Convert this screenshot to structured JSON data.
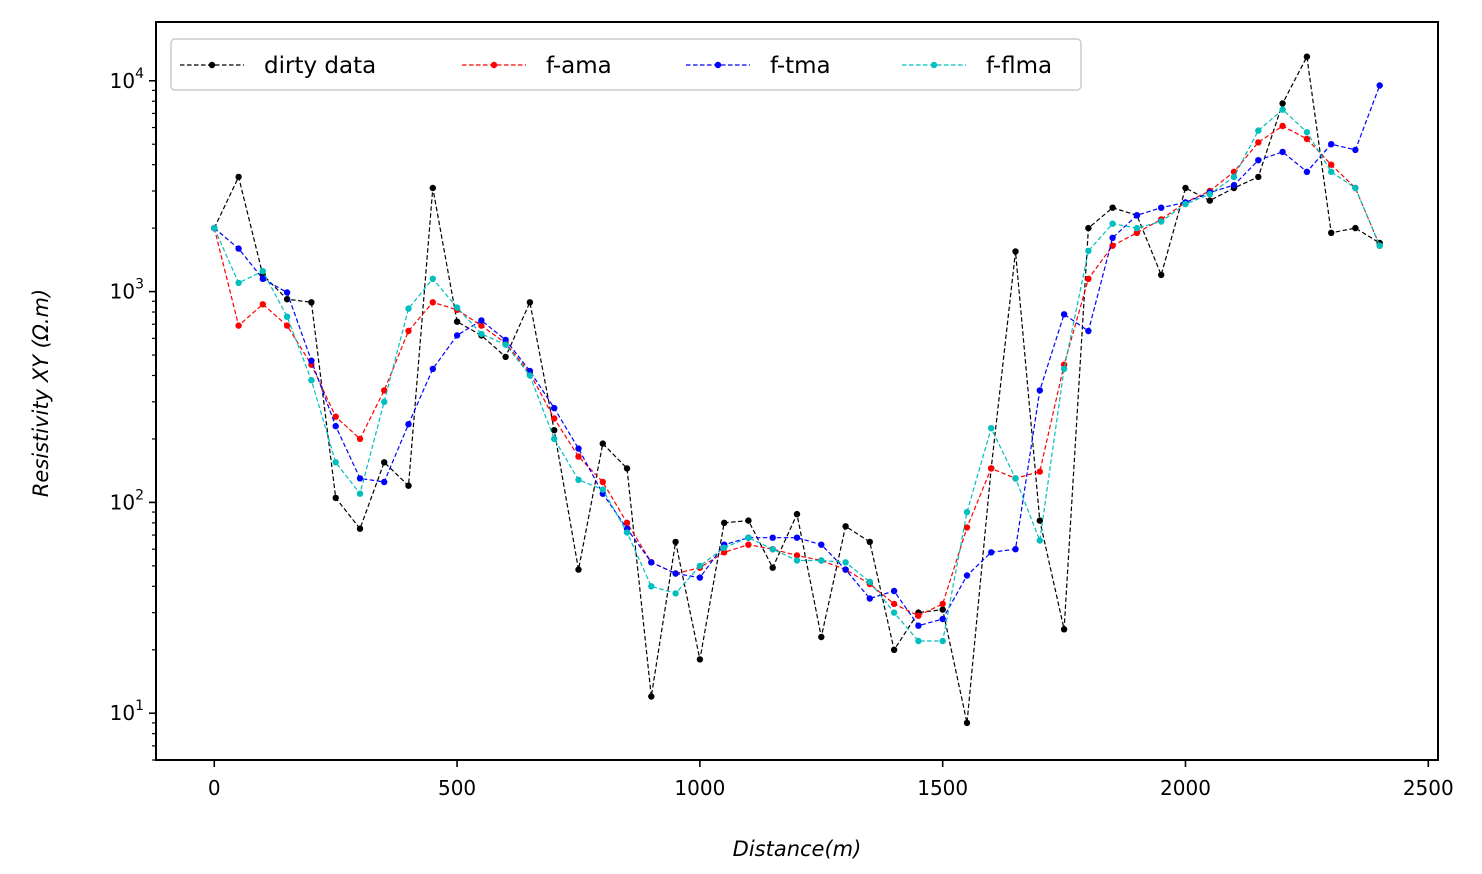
{
  "chart_data": {
    "type": "line",
    "xlabel": "Distance(m)",
    "ylabel": "Resistivity   XY   (Ω.m)",
    "xlim": [
      -120,
      2520
    ],
    "ylim": [
      6,
      19000
    ],
    "yscale": "log",
    "grid": false,
    "legend_position": "top-left",
    "x_ticks": [
      0,
      500,
      1000,
      1500,
      2000,
      2500
    ],
    "x_tick_labels": [
      "0",
      "500",
      "1000",
      "1500",
      "2000",
      "2500"
    ],
    "y_ticks": [
      {
        "base": "10",
        "exp": "1",
        "value": 10
      },
      {
        "base": "10",
        "exp": "2",
        "value": 100
      },
      {
        "base": "10",
        "exp": "3",
        "value": 1000
      },
      {
        "base": "10",
        "exp": "4",
        "value": 10000
      }
    ],
    "x": [
      0,
      50,
      100,
      150,
      200,
      250,
      300,
      350,
      400,
      450,
      500,
      550,
      600,
      650,
      700,
      750,
      800,
      850,
      900,
      950,
      1000,
      1050,
      1100,
      1150,
      1200,
      1250,
      1300,
      1350,
      1400,
      1450,
      1500,
      1550,
      1600,
      1650,
      1700,
      1750,
      1800,
      1850,
      1900,
      1950,
      2000,
      2050,
      2100,
      2150,
      2200,
      2250,
      2300,
      2350,
      2400
    ],
    "series": [
      {
        "name": "dirty data",
        "color": "#000000",
        "values": [
          2000,
          3500,
          1200,
          920,
          890,
          105,
          75,
          155,
          120,
          3100,
          720,
          620,
          490,
          890,
          220,
          48,
          190,
          145,
          12,
          65,
          18,
          80,
          82,
          49,
          88,
          23,
          77,
          65,
          20,
          30,
          31,
          9,
          145,
          1550,
          82,
          25,
          2000,
          2500,
          2300,
          1200,
          3100,
          2700,
          3100,
          3500,
          7800,
          13000,
          1900,
          2000,
          1700
        ]
      },
      {
        "name": "f-ama",
        "color": "#ff0000",
        "values": [
          2000,
          690,
          870,
          690,
          450,
          255,
          200,
          340,
          650,
          890,
          820,
          690,
          570,
          410,
          250,
          165,
          125,
          80,
          52,
          46,
          49,
          58,
          63,
          60,
          56,
          53,
          48,
          41,
          33,
          29,
          33,
          76,
          145,
          130,
          140,
          450,
          1150,
          1650,
          1900,
          2200,
          2650,
          3000,
          3700,
          5100,
          6100,
          5300,
          4000,
          3100,
          1650
        ]
      },
      {
        "name": "f-tma",
        "color": "#0000ff",
        "values": [
          2000,
          1600,
          1150,
          990,
          470,
          230,
          130,
          125,
          235,
          430,
          620,
          730,
          590,
          420,
          280,
          180,
          110,
          75,
          52,
          46,
          44,
          63,
          68,
          68,
          68,
          63,
          48,
          35,
          38,
          26,
          28,
          45,
          58,
          60,
          340,
          780,
          650,
          1800,
          2300,
          2500,
          2650,
          2950,
          3200,
          4200,
          4600,
          3700,
          5000,
          4700,
          9500
        ]
      },
      {
        "name": "f-flma",
        "color": "#00bfbf",
        "values": [
          2000,
          1100,
          1250,
          760,
          380,
          155,
          110,
          300,
          830,
          1150,
          840,
          630,
          560,
          400,
          200,
          128,
          115,
          72,
          40,
          37,
          50,
          61,
          68,
          60,
          53,
          53,
          52,
          42,
          30,
          22,
          22,
          90,
          225,
          130,
          66,
          430,
          1560,
          2100,
          2000,
          2150,
          2600,
          2900,
          3500,
          5800,
          7300,
          5700,
          3700,
          3100,
          1650
        ]
      }
    ]
  }
}
